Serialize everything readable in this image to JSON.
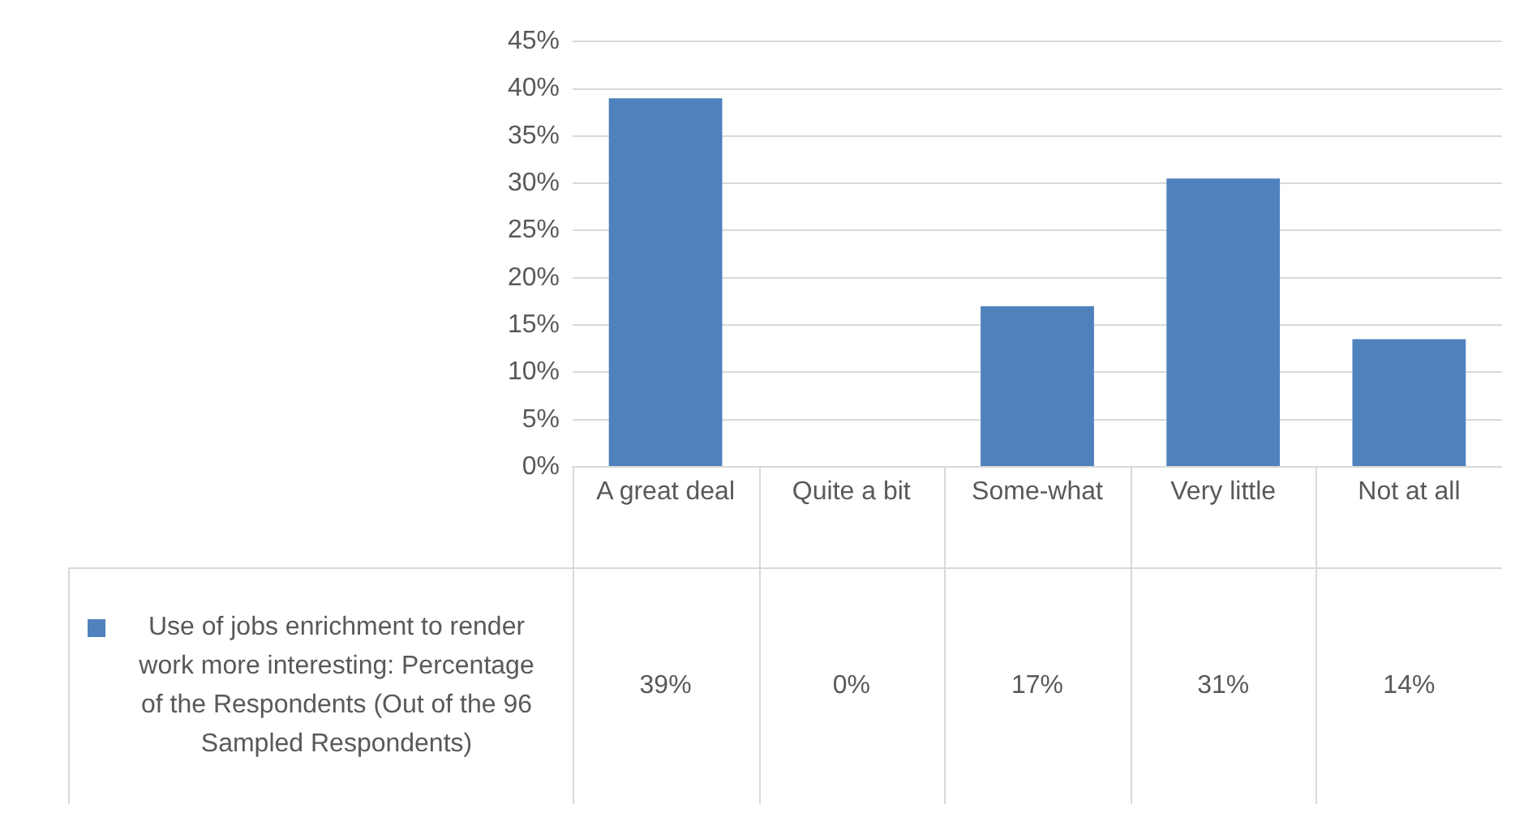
{
  "chart_data": {
    "type": "bar",
    "categories": [
      "A great deal",
      "Quite a bit",
      "Some-what",
      "Very little",
      "Not at all"
    ],
    "series": [
      {
        "name": "Use of jobs enrichment to render work more interesting: Percentage of the Respondents (Out of the 96 Sampled Respondents)",
        "color": "#4f81bd",
        "values": [
          39,
          0,
          17,
          30.5,
          13.5
        ],
        "value_labels": [
          "39%",
          "0%",
          "17%",
          "31%",
          "14%"
        ]
      }
    ],
    "ylim": [
      0,
      45
    ],
    "yticks": [
      {
        "value": 0,
        "label": "0%"
      },
      {
        "value": 5,
        "label": "5%"
      },
      {
        "value": 10,
        "label": "10%"
      },
      {
        "value": 15,
        "label": "15%"
      },
      {
        "value": 20,
        "label": "20%"
      },
      {
        "value": 25,
        "label": "25%"
      },
      {
        "value": 30,
        "label": "30%"
      },
      {
        "value": 35,
        "label": "35%"
      },
      {
        "value": 40,
        "label": "40%"
      },
      {
        "value": 45,
        "label": "45%"
      }
    ],
    "grid": "y",
    "legend": "bottom left"
  }
}
